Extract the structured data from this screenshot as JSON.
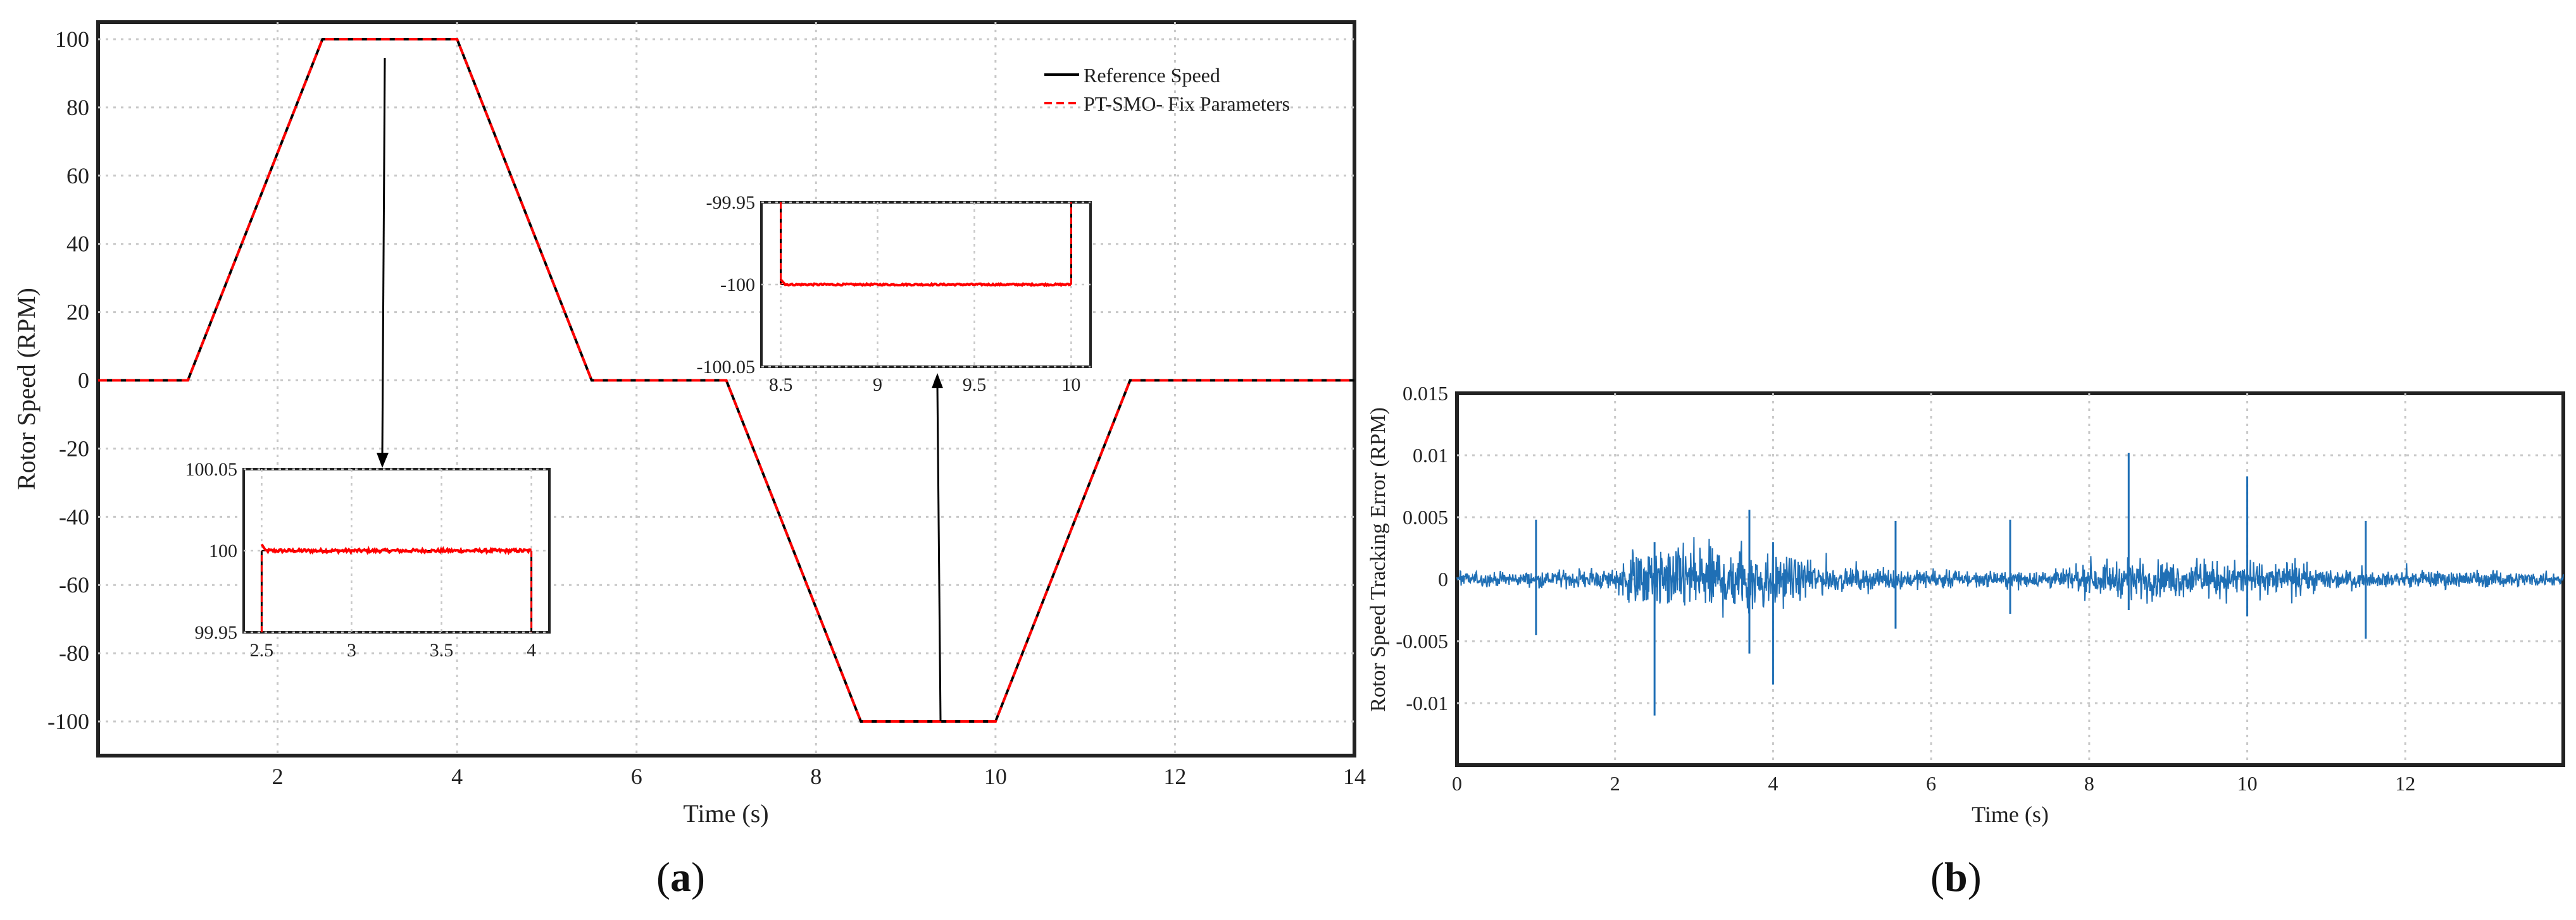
{
  "chart_data": [
    {
      "id": "a",
      "type": "line",
      "xlabel": "Time (s)",
      "ylabel": "Rotor Speed (RPM)",
      "xlim": [
        0,
        14
      ],
      "ylim": [
        -110,
        105
      ],
      "xticks": [
        2,
        4,
        6,
        8,
        10,
        12,
        14
      ],
      "yticks": [
        -100,
        -80,
        -60,
        -40,
        -20,
        0,
        20,
        40,
        60,
        80,
        100
      ],
      "grid": true,
      "legend": "top-right",
      "series": [
        {
          "name": "Reference Speed",
          "color": "#000000",
          "style": "solid",
          "x": [
            0,
            1,
            2.5,
            4,
            5.5,
            7,
            8.5,
            10,
            11.5,
            14
          ],
          "y": [
            0,
            0,
            100,
            100,
            0,
            0,
            -100,
            -100,
            0,
            0
          ]
        },
        {
          "name": "PT-SMO- Fix Parameters",
          "color": "#ff0000",
          "style": "dashed",
          "x": [
            0,
            1,
            2.5,
            4,
            5.5,
            7,
            8.5,
            10,
            11.5,
            14
          ],
          "y": [
            0,
            0,
            100,
            100,
            0,
            0,
            -100,
            -100,
            0,
            0
          ]
        }
      ],
      "insets": [
        {
          "name": "inset-upper-plateau",
          "xlim": [
            2.4,
            4.1
          ],
          "ylim": [
            99.95,
            100.05
          ],
          "xticks": [
            "2.5",
            "3",
            "3.5",
            "4"
          ],
          "yticks": [
            "100.05",
            "100",
            "99.95"
          ],
          "signal": {
            "x_start": 2.5,
            "x_end": 4.0,
            "level": 100.0,
            "noise": 0.001
          }
        },
        {
          "name": "inset-lower-plateau",
          "xlim": [
            8.4,
            10.1
          ],
          "ylim": [
            -100.05,
            -99.95
          ],
          "xticks": [
            "8.5",
            "9",
            "9.5",
            "10"
          ],
          "yticks": [
            "-99.95",
            "-100",
            "-100.05"
          ],
          "signal": {
            "x_start": 8.5,
            "x_end": 10.0,
            "level": -100.0,
            "noise": 0.0005
          }
        }
      ],
      "caption": "a"
    },
    {
      "id": "b",
      "type": "line",
      "xlabel": "Time (s)",
      "ylabel": "Rotor Speed Tracking Error (RPM)",
      "xlim": [
        0,
        14
      ],
      "ylim": [
        -0.015,
        0.015
      ],
      "xticks": [
        0,
        2,
        4,
        6,
        8,
        10,
        12
      ],
      "yticks": [
        0.015,
        0.01,
        0.005,
        0,
        -0.005,
        -0.01
      ],
      "grid": true,
      "series": [
        {
          "color": "#1f6fb5",
          "envelope": [
            [
              0,
              0.0008
            ],
            [
              1,
              0.0008
            ],
            [
              2,
              0.0012
            ],
            [
              2.2,
              0.003
            ],
            [
              3,
              0.004
            ],
            [
              3.7,
              0.0042
            ],
            [
              4.4,
              0.002
            ],
            [
              5,
              0.0012
            ],
            [
              6,
              0.001
            ],
            [
              7,
              0.0008
            ],
            [
              7.8,
              0.0012
            ],
            [
              8.5,
              0.0022
            ],
            [
              9.5,
              0.002
            ],
            [
              10.5,
              0.0018
            ],
            [
              11.3,
              0.001
            ],
            [
              11.5,
              0.0008
            ],
            [
              12.5,
              0.001
            ],
            [
              14,
              0.0008
            ]
          ],
          "spikes": [
            [
              1.0,
              0.0048,
              -0.0045
            ],
            [
              2.5,
              0.003,
              -0.011
            ],
            [
              3.7,
              0.0056,
              -0.006
            ],
            [
              4.0,
              0.003,
              -0.0085
            ],
            [
              5.55,
              0.0047,
              -0.004
            ],
            [
              7.0,
              0.0048,
              -0.0028
            ],
            [
              8.5,
              0.0102,
              -0.0025
            ],
            [
              10.0,
              0.0083,
              -0.003
            ],
            [
              11.5,
              0.0047,
              -0.0048
            ]
          ]
        }
      ],
      "caption": "b"
    }
  ]
}
